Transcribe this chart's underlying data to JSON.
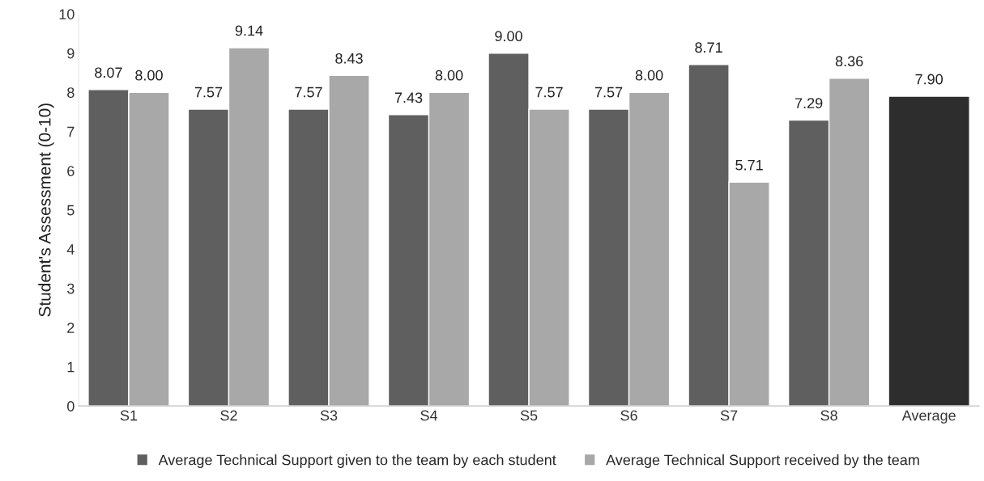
{
  "chart_data": {
    "type": "bar",
    "ylabel": "Student's Assessment (0-10)",
    "categories": [
      "S1",
      "S2",
      "S3",
      "S4",
      "S5",
      "S6",
      "S7",
      "S8",
      "Average"
    ],
    "series": [
      {
        "name": "Average Technical Support given to the team by each student",
        "color": "#5f5f5f",
        "values": [
          8.07,
          7.57,
          7.57,
          7.43,
          9.0,
          7.57,
          8.71,
          7.29,
          null
        ],
        "value_labels": [
          "8.07",
          "7.57",
          "7.57",
          "7.43",
          "9.00",
          "7.57",
          "8.71",
          "7.29",
          null
        ]
      },
      {
        "name": "Average Technical Support received by the team",
        "color": "#a8a8a8",
        "values": [
          8.0,
          9.14,
          8.43,
          8.0,
          7.57,
          8.0,
          5.71,
          8.36,
          null
        ],
        "value_labels": [
          "8.00",
          "9.14",
          "8.43",
          "8.00",
          "7.57",
          "8.00",
          "5.71",
          "8.36",
          null
        ]
      },
      {
        "color": "#2d2d2d",
        "values": [
          null,
          null,
          null,
          null,
          null,
          null,
          null,
          null,
          7.9
        ],
        "value_labels": [
          null,
          null,
          null,
          null,
          null,
          null,
          null,
          null,
          "7.90"
        ]
      }
    ],
    "ylim": [
      0,
      10
    ],
    "yticks": [
      0,
      1,
      2,
      3,
      4,
      5,
      6,
      7,
      8,
      9,
      10
    ],
    "grid": false,
    "legend": "bottom"
  }
}
